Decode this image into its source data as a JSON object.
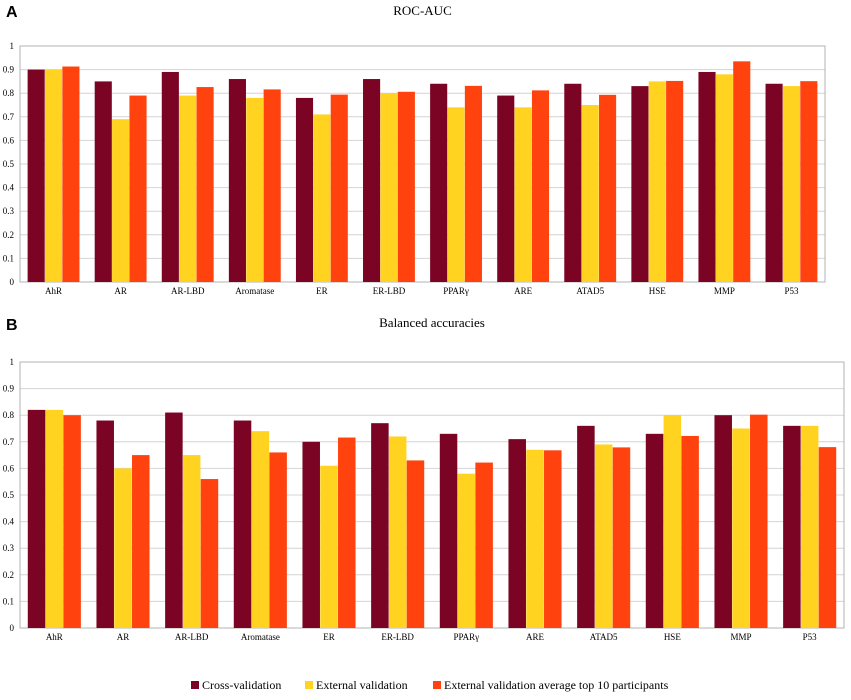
{
  "colors": {
    "cross_validation": "#7b0424",
    "external_validation": "#ffd320",
    "external_top10": "#ff420e"
  },
  "legend": {
    "items": [
      {
        "label": "Cross-validation",
        "color": "#7b0424"
      },
      {
        "label": "External validation",
        "color": "#ffd320"
      },
      {
        "label": "External validation average top 10 participants",
        "color": "#ff420e"
      }
    ]
  },
  "chart_data": [
    {
      "panel": "A",
      "type": "bar",
      "title": "ROC-AUC",
      "xlabel": "",
      "ylabel": "",
      "ylim": [
        0,
        1
      ],
      "yticks": [
        "0",
        "0.1",
        "0.2",
        "0.3",
        "0.4",
        "0.5",
        "0.6",
        "0.7",
        "0.8",
        "0.9",
        "1"
      ],
      "grid": true,
      "categories": [
        "AhR",
        "AR",
        "AR-LBD",
        "Aromatase",
        "ER",
        "ER-LBD",
        "PPARγ",
        "ARE",
        "ATAD5",
        "HSE",
        "MMP",
        "P53"
      ],
      "series": [
        {
          "name": "Cross-validation",
          "values": [
            0.9,
            0.85,
            0.89,
            0.86,
            0.78,
            0.86,
            0.84,
            0.79,
            0.84,
            0.83,
            0.89,
            0.84
          ]
        },
        {
          "name": "External validation",
          "values": [
            0.9,
            0.69,
            0.79,
            0.78,
            0.71,
            0.8,
            0.74,
            0.74,
            0.75,
            0.85,
            0.88,
            0.83
          ]
        },
        {
          "name": "External validation average top 10 participants",
          "values": [
            0.913,
            0.79,
            0.826,
            0.816,
            0.794,
            0.806,
            0.831,
            0.812,
            0.793,
            0.852,
            0.935,
            0.851
          ]
        }
      ]
    },
    {
      "panel": "B",
      "type": "bar",
      "title": "Balanced accuracies",
      "xlabel": "",
      "ylabel": "",
      "ylim": [
        0,
        1
      ],
      "yticks": [
        "0",
        "0.1",
        "0.2",
        "0.3",
        "0.4",
        "0.5",
        "0.6",
        "0.7",
        "0.8",
        "0.9",
        "1"
      ],
      "grid": true,
      "categories": [
        "AhR",
        "AR",
        "AR-LBD",
        "Aromatase",
        "ER",
        "ER-LBD",
        "PPARγ",
        "ARE",
        "ATAD5",
        "HSE",
        "MMP",
        "P53"
      ],
      "series": [
        {
          "name": "Cross-validation",
          "values": [
            0.82,
            0.78,
            0.81,
            0.78,
            0.7,
            0.77,
            0.73,
            0.71,
            0.76,
            0.73,
            0.8,
            0.76
          ]
        },
        {
          "name": "External validation",
          "values": [
            0.82,
            0.6,
            0.65,
            0.74,
            0.61,
            0.72,
            0.58,
            0.67,
            0.69,
            0.8,
            0.75,
            0.76
          ]
        },
        {
          "name": "External validation average top 10 participants",
          "values": [
            0.8,
            0.65,
            0.56,
            0.66,
            0.716,
            0.63,
            0.622,
            0.668,
            0.679,
            0.722,
            0.802,
            0.68
          ]
        }
      ]
    }
  ]
}
